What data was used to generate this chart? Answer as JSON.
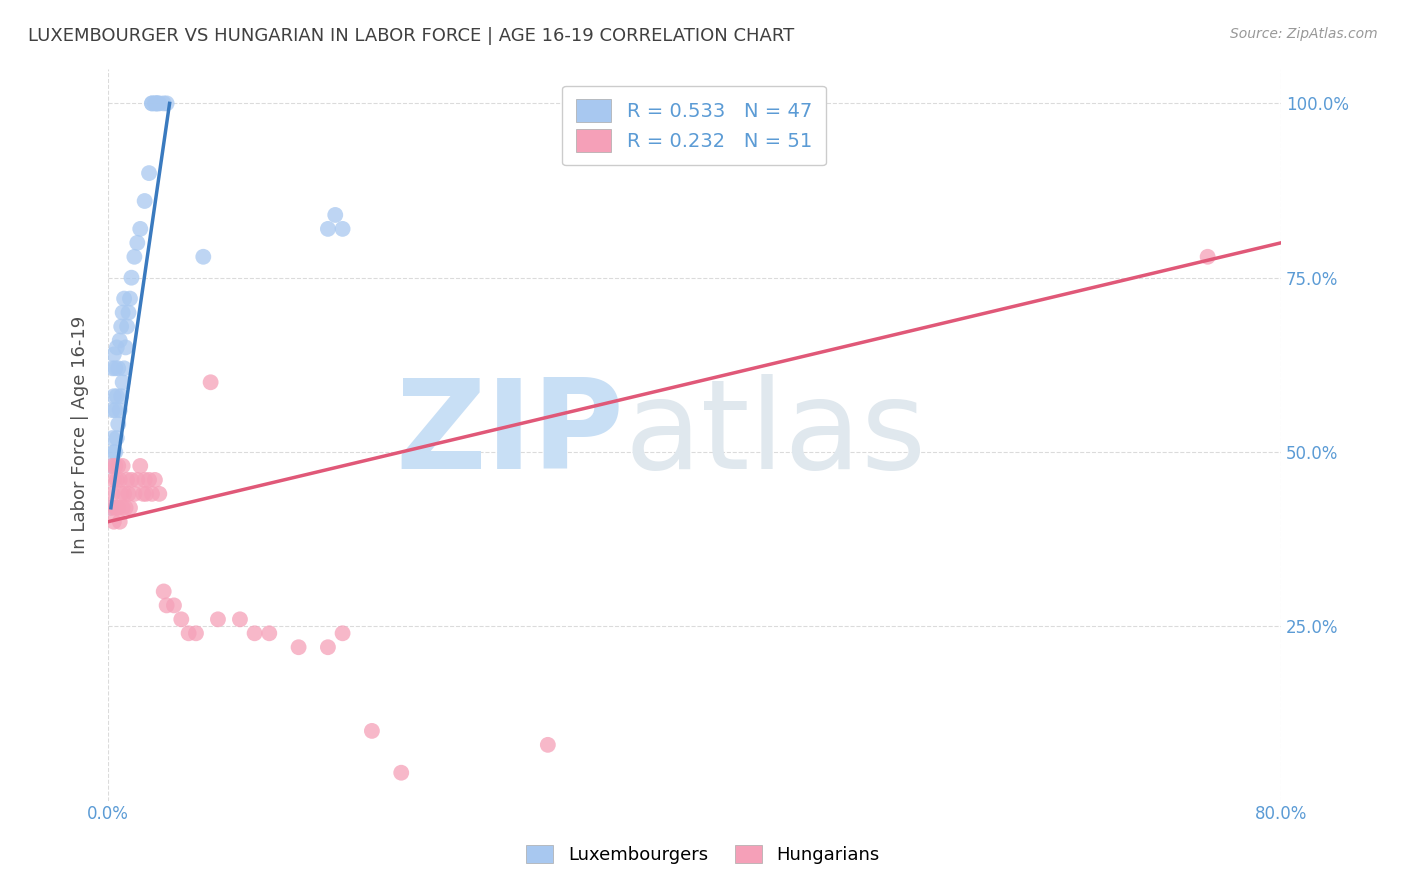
{
  "title": "LUXEMBOURGER VS HUNGARIAN IN LABOR FORCE | AGE 16-19 CORRELATION CHART",
  "source": "Source: ZipAtlas.com",
  "ylabel": "In Labor Force | Age 16-19",
  "xlim": [
    0.0,
    0.8
  ],
  "ylim": [
    0.0,
    1.05
  ],
  "blue_color": "#a8c8f0",
  "pink_color": "#f5a0b8",
  "blue_line_color": "#3a7abf",
  "pink_line_color": "#e05878",
  "legend_blue_label": "R = 0.533   N = 47",
  "legend_pink_label": "R = 0.232   N = 51",
  "background_color": "#ffffff",
  "grid_color": "#cccccc",
  "tick_label_color": "#5b9bd5",
  "title_color": "#404040",
  "ylabel_color": "#505050",
  "blue_x": [
    0.002,
    0.002,
    0.003,
    0.003,
    0.003,
    0.004,
    0.004,
    0.004,
    0.005,
    0.005,
    0.005,
    0.006,
    0.006,
    0.006,
    0.007,
    0.007,
    0.008,
    0.008,
    0.009,
    0.009,
    0.01,
    0.01,
    0.011,
    0.011,
    0.012,
    0.013,
    0.014,
    0.015,
    0.016,
    0.018,
    0.02,
    0.022,
    0.025,
    0.028,
    0.03,
    0.03,
    0.032,
    0.033,
    0.033,
    0.034,
    0.035,
    0.038,
    0.04,
    0.065,
    0.15,
    0.155,
    0.16
  ],
  "blue_y": [
    0.42,
    0.48,
    0.52,
    0.56,
    0.62,
    0.5,
    0.58,
    0.64,
    0.5,
    0.56,
    0.62,
    0.52,
    0.58,
    0.65,
    0.54,
    0.62,
    0.56,
    0.66,
    0.58,
    0.68,
    0.6,
    0.7,
    0.62,
    0.72,
    0.65,
    0.68,
    0.7,
    0.72,
    0.75,
    0.78,
    0.8,
    0.82,
    0.86,
    0.9,
    1.0,
    1.0,
    1.0,
    1.0,
    1.0,
    1.0,
    1.0,
    1.0,
    1.0,
    0.78,
    0.82,
    0.84,
    0.82
  ],
  "pink_x": [
    0.002,
    0.003,
    0.003,
    0.004,
    0.004,
    0.005,
    0.005,
    0.006,
    0.006,
    0.007,
    0.007,
    0.008,
    0.008,
    0.009,
    0.01,
    0.01,
    0.011,
    0.012,
    0.013,
    0.014,
    0.015,
    0.016,
    0.018,
    0.02,
    0.022,
    0.024,
    0.025,
    0.026,
    0.028,
    0.03,
    0.032,
    0.035,
    0.038,
    0.04,
    0.045,
    0.05,
    0.055,
    0.06,
    0.07,
    0.075,
    0.09,
    0.1,
    0.11,
    0.13,
    0.15,
    0.16,
    0.18,
    0.2,
    0.3,
    0.38,
    0.75
  ],
  "pink_y": [
    0.42,
    0.44,
    0.48,
    0.4,
    0.46,
    0.42,
    0.48,
    0.42,
    0.46,
    0.42,
    0.48,
    0.4,
    0.46,
    0.44,
    0.42,
    0.48,
    0.44,
    0.42,
    0.46,
    0.44,
    0.42,
    0.46,
    0.44,
    0.46,
    0.48,
    0.44,
    0.46,
    0.44,
    0.46,
    0.44,
    0.46,
    0.44,
    0.3,
    0.28,
    0.28,
    0.26,
    0.24,
    0.24,
    0.6,
    0.26,
    0.26,
    0.24,
    0.24,
    0.22,
    0.22,
    0.24,
    0.1,
    0.04,
    0.08,
    1.0,
    0.78
  ],
  "blue_trend_x": [
    0.002,
    0.042
  ],
  "blue_trend_y": [
    0.42,
    1.0
  ],
  "pink_trend_x": [
    0.0,
    0.8
  ],
  "pink_trend_y": [
    0.4,
    0.8
  ],
  "watermark_zip": "ZIP",
  "watermark_atlas": "atlas",
  "watermark_color": "#ddeeff"
}
